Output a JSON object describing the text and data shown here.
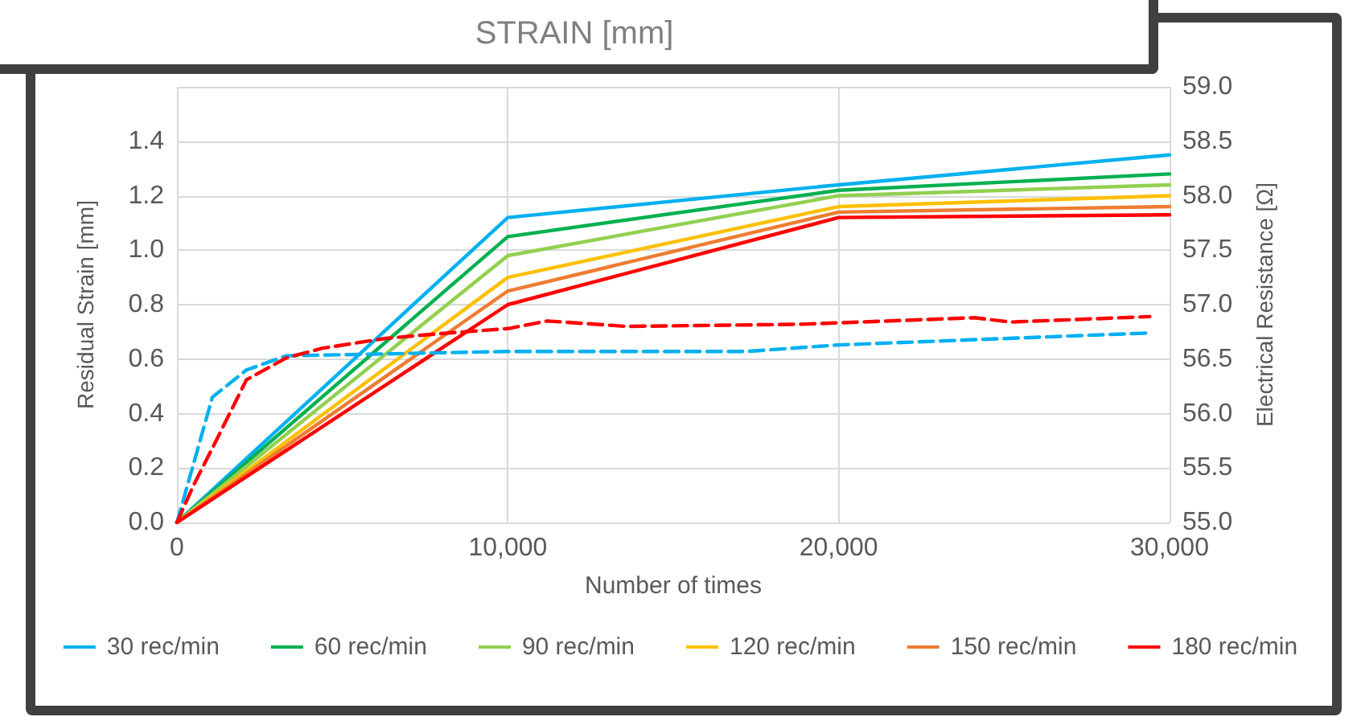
{
  "chart_data": {
    "type": "line",
    "title": "STRAIN [mm]",
    "xlabel": "Number of times",
    "ylabel": "Residual Strain [mm]",
    "y2label": "Electrical Resistance [Ω]",
    "xlim": [
      0,
      30000
    ],
    "xticks": [
      0,
      {
        "value": 10000,
        "label": "10,000"
      },
      {
        "value": 20000,
        "label": "20,000"
      },
      {
        "value": 30000,
        "label": "30,000"
      }
    ],
    "ylim": [
      0,
      1.6
    ],
    "yticks": [
      {
        "value": 0,
        "label": "0.0"
      },
      0.2,
      0.4,
      0.6,
      0.8,
      {
        "value": 1,
        "label": "1.0"
      },
      1.2,
      1.4,
      {
        "value": 1.6,
        "label": null
      }
    ],
    "y2lim": [
      55,
      59
    ],
    "y2ticks": [
      {
        "value": 55,
        "label": "55.0"
      },
      55.5,
      {
        "value": 56,
        "label": "56.0"
      },
      56.5,
      {
        "value": 57,
        "label": "57.0"
      },
      57.5,
      {
        "value": 58,
        "label": "58.0"
      },
      58.5,
      {
        "value": 59,
        "label": "59.0"
      }
    ],
    "grid": true,
    "legend": "bottom",
    "marker": "none",
    "series": [
      {
        "name": "30 rec/min",
        "color": "#00b0f0",
        "x": [
          0,
          10000,
          20000,
          30000
        ],
        "values": [
          0,
          1.12,
          1.24,
          1.35
        ]
      },
      {
        "name": "60 rec/min",
        "color": "#00b050",
        "x": [
          0,
          10000,
          20000,
          30000
        ],
        "values": [
          0,
          1.05,
          1.22,
          1.28
        ]
      },
      {
        "name": "90 rec/min",
        "color": "#92d050",
        "x": [
          0,
          10000,
          20000,
          30000
        ],
        "values": [
          0,
          0.98,
          1.2,
          1.24
        ]
      },
      {
        "name": "120 rec/min",
        "color": "#ffc000",
        "x": [
          0,
          10000,
          20000,
          30000
        ],
        "values": [
          0,
          0.9,
          1.16,
          1.2
        ]
      },
      {
        "name": "150 rec/min",
        "color": "#ed7d31",
        "x": [
          0,
          10000,
          20000,
          30000
        ],
        "values": [
          0,
          0.85,
          1.14,
          1.16
        ]
      },
      {
        "name": "180 rec/min",
        "color": "#ff0000",
        "x": [
          0,
          10000,
          20000,
          30000
        ],
        "values": [
          0,
          0.8,
          1.12,
          1.13
        ]
      },
      {
        "color": "#00b0f0",
        "axis": "y2",
        "line_style": "dashed",
        "x": [
          0,
          1070,
          2100,
          3300,
          10000,
          17200,
          20000,
          29400
        ],
        "values": [
          55,
          56.15,
          56.4,
          56.53,
          56.57,
          56.57,
          56.63,
          56.74
        ]
      },
      {
        "color": "#ff0000",
        "axis": "y2",
        "line_style": "dashed",
        "x": [
          0,
          500,
          1100,
          2100,
          3300,
          4400,
          6300,
          7800,
          10000,
          11200,
          13600,
          18900,
          24100,
          25200,
          29400
        ],
        "values": [
          55,
          55.34,
          55.7,
          56.31,
          56.51,
          56.6,
          56.69,
          56.73,
          56.78,
          56.85,
          56.8,
          56.82,
          56.88,
          56.84,
          56.89
        ]
      }
    ]
  }
}
